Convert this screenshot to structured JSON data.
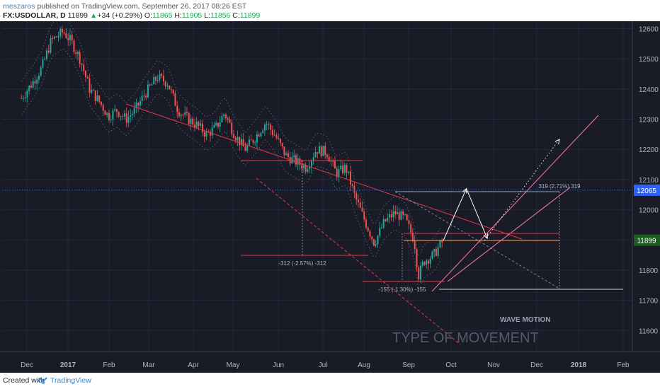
{
  "header": {
    "author": "meszaros",
    "published_text": "published on TradingView.com, September 26, 2017 08:26 EST",
    "symbol": "FX:USDOLLAR, D",
    "last": "11899",
    "change_arrow": "▲",
    "change": "+34 (+0.29%)",
    "o_label": "O:",
    "o_value": "11865",
    "h_label": "H:",
    "h_value": "11905",
    "l_label": "L:",
    "l_value": "11856",
    "c_label": "C:",
    "c_value": "11899"
  },
  "footer": {
    "created_with": "Created with",
    "brand": "TradingView"
  },
  "chart_data": {
    "type": "candlestick",
    "symbol": "FX:USDOLLAR",
    "timeframe": "D",
    "ylim": [
      11535,
      12620
    ],
    "y_ticks": [
      12600,
      12500,
      12400,
      12300,
      12200,
      12100,
      12000,
      11900,
      11800,
      11700,
      11600
    ],
    "x_ticks": [
      "Dec",
      "2017",
      "Feb",
      "Mar",
      "Apr",
      "May",
      "Jun",
      "Jul",
      "Aug",
      "Sep",
      "Oct",
      "Nov",
      "Dec",
      "2018",
      "Feb"
    ],
    "price_badges": [
      {
        "value": 12065,
        "label": "12065",
        "color": "#2962ff"
      },
      {
        "value": 11899,
        "label": "11899",
        "color": "#1b5e20"
      }
    ],
    "horizontal_lines": [
      {
        "value": 12065,
        "color": "#2962ff",
        "style": "dotted"
      }
    ],
    "measurements": [
      {
        "label": "-312 (-2.57%) -312"
      },
      {
        "label": "-155 (-1.30%) -155"
      },
      {
        "label": "319 (2.71%) 319"
      }
    ],
    "annotations": [
      "WAVE MOTION",
      "TYPE OF MOVEMENT"
    ],
    "price_path": [
      [
        "Nov 28",
        12370
      ],
      [
        "Dec 5",
        12420
      ],
      [
        "Dec 12",
        12470
      ],
      [
        "Dec 19",
        12560
      ],
      [
        "Dec 28",
        12590
      ],
      [
        "Jan 3",
        12560
      ],
      [
        "Jan 10",
        12500
      ],
      [
        "Jan 17",
        12400
      ],
      [
        "Jan 24",
        12360
      ],
      [
        "Jan 31",
        12310
      ],
      [
        "Feb 7",
        12330
      ],
      [
        "Feb 14",
        12300
      ],
      [
        "Feb 21",
        12330
      ],
      [
        "Feb 28",
        12380
      ],
      [
        "Mar 7",
        12440
      ],
      [
        "Mar 14",
        12420
      ],
      [
        "Mar 21",
        12330
      ],
      [
        "Mar 28",
        12300
      ],
      [
        "Apr 4",
        12280
      ],
      [
        "Apr 11",
        12250
      ],
      [
        "Apr 18",
        12270
      ],
      [
        "Apr 25",
        12320
      ],
      [
        "May 2",
        12250
      ],
      [
        "May 9",
        12200
      ],
      [
        "May 16",
        12240
      ],
      [
        "May 23",
        12290
      ],
      [
        "May 30",
        12240
      ],
      [
        "Jun 6",
        12180
      ],
      [
        "Jun 13",
        12160
      ],
      [
        "Jun 20",
        12140
      ],
      [
        "Jun 27",
        12200
      ],
      [
        "Jul 4",
        12190
      ],
      [
        "Jul 11",
        12120
      ],
      [
        "Jul 18",
        12140
      ],
      [
        "Jul 25",
        12040
      ],
      [
        "Aug 1",
        11970
      ],
      [
        "Aug 8",
        11890
      ],
      [
        "Aug 15",
        11960
      ],
      [
        "Aug 22",
        11990
      ],
      [
        "Aug 29",
        11970
      ],
      [
        "Sep 5",
        11900
      ],
      [
        "Sep 8",
        11780
      ],
      [
        "Sep 12",
        11830
      ],
      [
        "Sep 19",
        11850
      ],
      [
        "Sep 26",
        11899
      ]
    ],
    "projection_arrows": [
      [
        "Sep 26",
        11899
      ],
      [
        "Oct 12",
        12070
      ],
      [
        "Oct 27",
        11905
      ]
    ]
  }
}
